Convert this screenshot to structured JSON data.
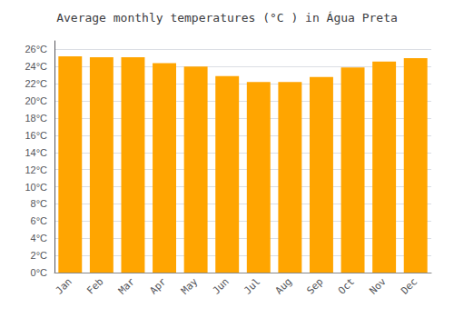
{
  "chart_data": {
    "type": "bar",
    "title": "Average monthly temperatures (°C ) in Água Preta",
    "categories": [
      "Jan",
      "Feb",
      "Mar",
      "Apr",
      "May",
      "Jun",
      "Jul",
      "Aug",
      "Sep",
      "Oct",
      "Nov",
      "Dec"
    ],
    "values": [
      25.2,
      25.1,
      25.1,
      24.4,
      24.0,
      22.9,
      22.2,
      22.2,
      22.8,
      23.9,
      24.6,
      25.0
    ],
    "color": "#FFA500",
    "ylim": [
      0,
      27
    ],
    "yticks": [
      {
        "value": 0,
        "label": "0°C"
      },
      {
        "value": 2,
        "label": "2°C"
      },
      {
        "value": 4,
        "label": "4°C"
      },
      {
        "value": 6,
        "label": "6°C"
      },
      {
        "value": 8,
        "label": "8°C"
      },
      {
        "value": 10,
        "label": "10°C"
      },
      {
        "value": 12,
        "label": "12°C"
      },
      {
        "value": 14,
        "label": "14°C"
      },
      {
        "value": 16,
        "label": "16°C"
      },
      {
        "value": 18,
        "label": "18°C"
      },
      {
        "value": 20,
        "label": "20°C"
      },
      {
        "value": 22,
        "label": "22°C"
      },
      {
        "value": 24,
        "label": "24°C"
      },
      {
        "value": 26,
        "label": "26°C"
      }
    ],
    "grid": true
  }
}
